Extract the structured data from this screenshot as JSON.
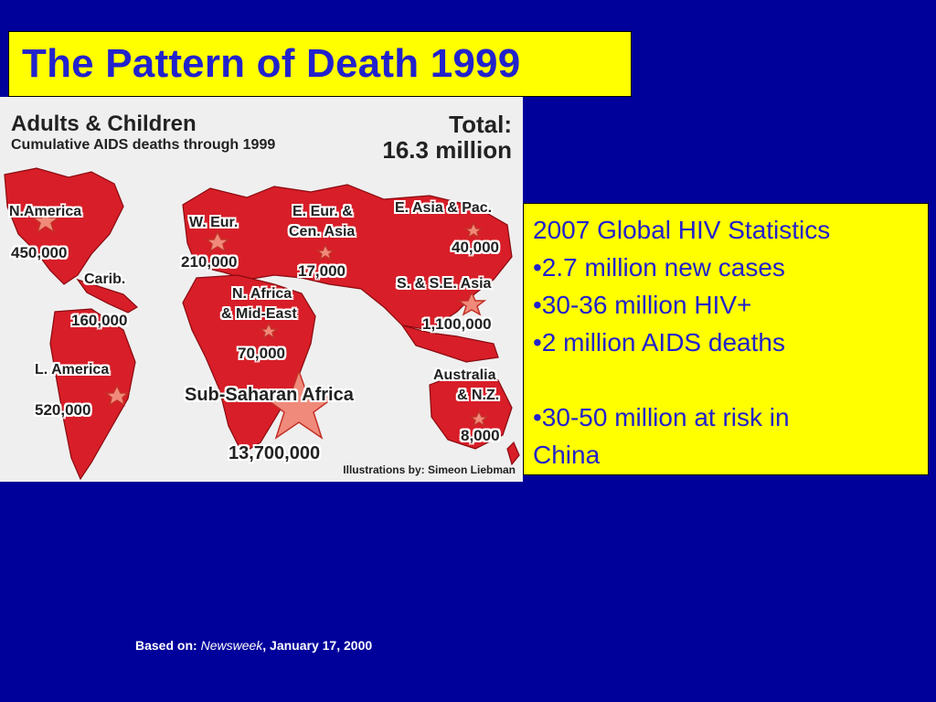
{
  "slide": {
    "title": "The Pattern of Death 1999",
    "source_prefix": "Based on: ",
    "source_publication": "Newsweek",
    "source_suffix": ", January 17, 2000"
  },
  "map": {
    "heading": "Adults & Children",
    "subheading": "Cumulative AIDS deaths through 1999",
    "total_label": "Total:",
    "total_value": "16.3 million",
    "credit": "Illustrations by: Simeon Liebman",
    "regions": [
      {
        "name": "N.America",
        "value": "450,000"
      },
      {
        "name": "Carib.",
        "value": "160,000"
      },
      {
        "name": "L. America",
        "value": "520,000"
      },
      {
        "name": "W. Eur.",
        "value": "210,000"
      },
      {
        "name_line1": "E. Eur. &",
        "name_line2": "Cen. Asia",
        "value": "17,000"
      },
      {
        "name_line1": "N. Africa",
        "name_line2": "& Mid-East",
        "value": "70,000"
      },
      {
        "name": "Sub-Saharan Africa",
        "value": "13,700,000"
      },
      {
        "name": "E. Asia & Pac.",
        "value": "40,000"
      },
      {
        "name": "S. & S.E. Asia",
        "value": "1,100,000"
      },
      {
        "name_line1": "Australia",
        "name_line2": "& N.Z.",
        "value": "8,000"
      }
    ],
    "colors": {
      "land": "#d81e28",
      "land_dark": "#9e0f14",
      "ocean": "#efefef",
      "star": "#f08a7a"
    }
  },
  "stats": {
    "heading": "2007 Global HIV Statistics",
    "bullets": [
      "•2.7 million new cases",
      "•30-36 million HIV+",
      "•2 million AIDS deaths"
    ],
    "china_line1": "•30-50 million at risk in",
    "china_line2": "China"
  },
  "colors": {
    "background": "#00009b",
    "title_box": "#ffff00",
    "title_text": "#2222cc"
  }
}
